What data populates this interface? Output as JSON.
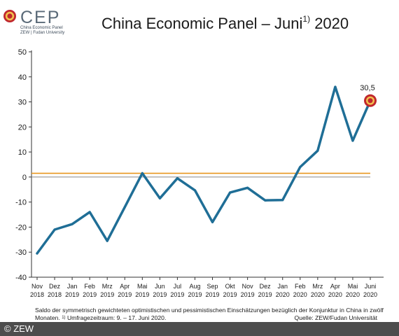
{
  "logo": {
    "text": "CEP",
    "sub1": "China Economic Panel",
    "sub2": "ZEW | Fudan University",
    "brand_color": "#c0272d"
  },
  "title": {
    "main": "China Economic Panel – Juni",
    "ref": "1)",
    "year": "2020"
  },
  "chart_data": {
    "type": "line",
    "categories": [
      [
        "Nov",
        "2018"
      ],
      [
        "Dez",
        "2018"
      ],
      [
        "Jan",
        "2019"
      ],
      [
        "Feb",
        "2019"
      ],
      [
        "Mrz",
        "2019"
      ],
      [
        "Apr",
        "2019"
      ],
      [
        "Mai",
        "2019"
      ],
      [
        "Jun",
        "2019"
      ],
      [
        "Jul",
        "2019"
      ],
      [
        "Aug",
        "2019"
      ],
      [
        "Sep",
        "2019"
      ],
      [
        "Okt",
        "2019"
      ],
      [
        "Nov",
        "2019"
      ],
      [
        "Dez",
        "2019"
      ],
      [
        "Jan",
        "2020"
      ],
      [
        "Feb",
        "2020"
      ],
      [
        "Mrz",
        "2020"
      ],
      [
        "Apr",
        "2020"
      ],
      [
        "Mai",
        "2020"
      ],
      [
        "Juni",
        "2020"
      ]
    ],
    "series": [
      {
        "values": [
          -30.5,
          -21,
          -18.8,
          -14,
          -25.5,
          -12,
          1.5,
          -8.5,
          -0.5,
          -5.3,
          -18,
          -6.2,
          -4.3,
          -9.3,
          -9.2,
          4,
          10.5,
          36,
          14.5,
          30.5
        ],
        "color": "#1f6e96"
      }
    ],
    "ylim": [
      -40,
      50
    ],
    "yticks": [
      -40,
      -30,
      -20,
      -10,
      0,
      10,
      20,
      30,
      40,
      50
    ],
    "reference_lines": [
      {
        "value": 1.5,
        "color": "#e8961e"
      },
      {
        "value": 0,
        "color": "#888888"
      }
    ],
    "highlight": {
      "index": 19,
      "label": "30,5",
      "color": "#c0272d"
    },
    "grid": false,
    "xlabel": "",
    "ylabel": ""
  },
  "footnote": {
    "text1": "Saldo der symmetrisch gewichteten optimistischen und pessimistischen Einschätzungen bezüglich der Konjunktur in China in zwölf Monaten. ",
    "ref": "1)",
    "text2": " Umfragezeitraum: 9. – 17. Juni 2020."
  },
  "source": "Quelle: ZEW/Fudan Universität",
  "copyright": "© ZEW"
}
